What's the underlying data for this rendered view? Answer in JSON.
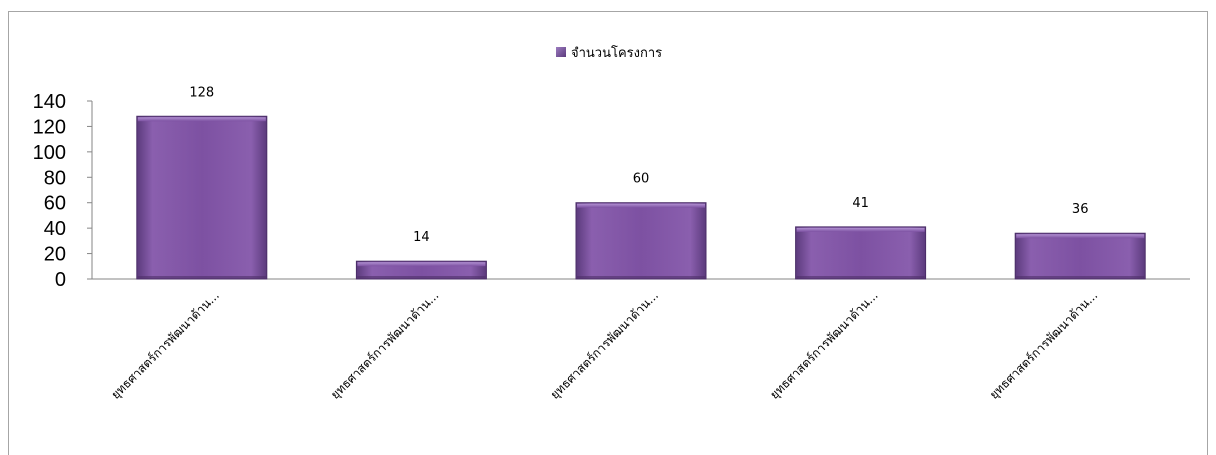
{
  "chart_data": {
    "type": "bar",
    "title": "",
    "xlabel": "",
    "ylabel": "",
    "categories": [
      "ยุทธศาสตร์การพัฒนาด้าน...",
      "ยุทธศาสตร์การพัฒนาด้าน...",
      "ยุทธศาสตร์การพัฒนาด้าน...",
      "ยุทธศาสตร์การพัฒนาด้าน...",
      "ยุทธศาสตร์การพัฒนาด้าน..."
    ],
    "series": [
      {
        "name": "จำนวนโครงการ",
        "values": [
          128,
          14,
          60,
          41,
          36
        ],
        "color": "#7c4f9f"
      }
    ],
    "ylim": [
      0,
      140
    ],
    "yticks": [
      0,
      20,
      40,
      60,
      80,
      100,
      120,
      140
    ],
    "legend_position": "top",
    "grid": false
  }
}
